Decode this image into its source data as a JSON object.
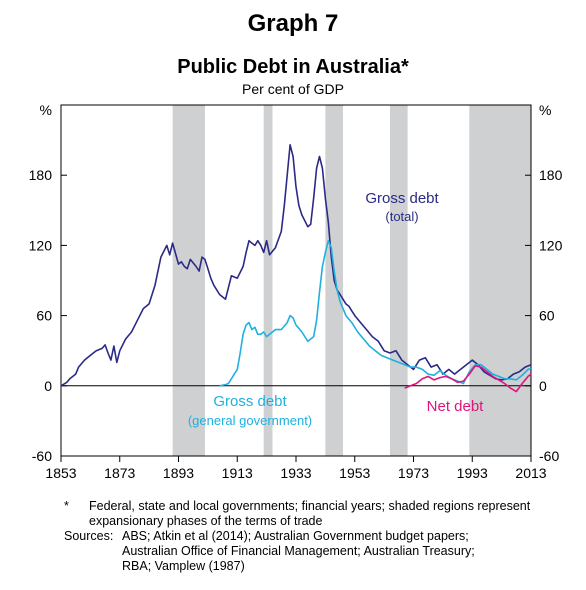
{
  "header": {
    "graph_number": "Graph 7",
    "title": "Public Debt in Australia*",
    "subtitle": "Per cent of GDP"
  },
  "footnote": {
    "marker": "*",
    "text": "Federal, state and local governments; financial years; shaded regions represent expansionary phases of the terms of trade"
  },
  "sources": {
    "label": "Sources:",
    "lines": [
      "ABS; Atkin et al (2014); Australian Government budget papers;",
      "Australian Office of Financial Management; Australian Treasury;",
      "RBA; Vamplew (1987)"
    ]
  },
  "colors": {
    "gross_total": "#2b2b86",
    "gross_general": "#1fb0e0",
    "net": "#e0147f",
    "shade": "#cfd0d2"
  },
  "chart_data": {
    "type": "line",
    "xlim": [
      1853,
      2013
    ],
    "ylim": [
      -60,
      240
    ],
    "x_ticks": [
      "1853",
      "1873",
      "1893",
      "1913",
      "1933",
      "1953",
      "1973",
      "1993",
      "2013"
    ],
    "y_ticks": [
      "-60",
      "0",
      "60",
      "120",
      "180"
    ],
    "y_unit_left": "%",
    "y_unit_right": "%",
    "shaded_periods": [
      [
        1891,
        1902
      ],
      [
        1922,
        1925
      ],
      [
        1943,
        1949
      ],
      [
        1965,
        1971
      ],
      [
        1992,
        2013
      ]
    ],
    "series": [
      {
        "name": "Gross debt (total)",
        "label_lines": [
          "Gross debt",
          "(total)"
        ],
        "color": "#2b2b86",
        "x": [
          1853,
          1855,
          1856,
          1858,
          1859,
          1861,
          1862,
          1864,
          1865,
          1867,
          1868,
          1869,
          1870,
          1871,
          1872,
          1873,
          1875,
          1877,
          1879,
          1881,
          1883,
          1885,
          1887,
          1889,
          1890,
          1891,
          1893,
          1894,
          1895,
          1896,
          1897,
          1899,
          1900,
          1901,
          1902,
          1903,
          1904,
          1905,
          1907,
          1909,
          1911,
          1913,
          1915,
          1916,
          1917,
          1918,
          1919,
          1920,
          1921,
          1922,
          1923,
          1924,
          1926,
          1928,
          1929,
          1930,
          1931,
          1932,
          1933,
          1934,
          1935,
          1937,
          1938,
          1939,
          1940,
          1941,
          1942,
          1943,
          1944,
          1945,
          1946,
          1947,
          1948,
          1949,
          1950,
          1951,
          1952,
          1953,
          1955,
          1957,
          1959,
          1961,
          1963,
          1965,
          1967,
          1969,
          1971,
          1973,
          1975,
          1977,
          1979,
          1981,
          1983,
          1985,
          1987,
          1989,
          1991,
          1993,
          1995,
          1997,
          1999,
          2001,
          2003,
          2005,
          2007,
          2009,
          2011,
          2013
        ],
        "y": [
          0,
          3,
          6,
          10,
          16,
          22,
          24,
          28,
          30,
          32,
          35,
          28,
          22,
          34,
          20,
          30,
          40,
          46,
          56,
          66,
          70,
          86,
          110,
          120,
          112,
          122,
          104,
          106,
          102,
          100,
          108,
          102,
          98,
          110,
          108,
          100,
          92,
          86,
          78,
          74,
          94,
          92,
          102,
          114,
          124,
          122,
          120,
          124,
          120,
          114,
          124,
          112,
          118,
          132,
          154,
          180,
          206,
          196,
          170,
          154,
          146,
          136,
          138,
          160,
          186,
          196,
          186,
          160,
          140,
          110,
          90,
          82,
          78,
          74,
          70,
          68,
          64,
          60,
          54,
          48,
          42,
          38,
          30,
          28,
          30,
          22,
          18,
          14,
          22,
          24,
          16,
          18,
          10,
          14,
          10,
          14,
          18,
          22,
          18,
          12,
          9,
          6,
          5,
          6,
          10,
          12,
          16,
          18
        ]
      },
      {
        "name": "Gross debt (general government)",
        "label_lines": [
          "Gross debt",
          "(general government)"
        ],
        "color": "#1fb0e0",
        "x": [
          1907,
          1909,
          1910,
          1911,
          1912,
          1913,
          1914,
          1915,
          1916,
          1917,
          1918,
          1919,
          1920,
          1921,
          1922,
          1923,
          1924,
          1926,
          1928,
          1930,
          1931,
          1932,
          1933,
          1935,
          1937,
          1939,
          1940,
          1941,
          1942,
          1943,
          1944,
          1945,
          1946,
          1947,
          1948,
          1949,
          1950,
          1952,
          1954,
          1956,
          1958,
          1960,
          1962,
          1964,
          1966,
          1968,
          1970,
          1972,
          1974,
          1976,
          1978,
          1980,
          1982,
          1984,
          1986,
          1988,
          1990,
          1992,
          1994,
          1996,
          1998,
          2000,
          2002,
          2004,
          2006,
          2008,
          2010,
          2012,
          2013
        ],
        "y": [
          0,
          1,
          2,
          6,
          10,
          14,
          28,
          44,
          52,
          54,
          48,
          50,
          44,
          44,
          46,
          42,
          44,
          48,
          48,
          54,
          60,
          58,
          52,
          46,
          38,
          42,
          56,
          80,
          102,
          114,
          124,
          118,
          98,
          82,
          72,
          66,
          60,
          54,
          46,
          40,
          34,
          30,
          26,
          24,
          22,
          20,
          18,
          16,
          16,
          14,
          10,
          9,
          13,
          9,
          6,
          4,
          2,
          12,
          18,
          18,
          14,
          10,
          8,
          6,
          6,
          5,
          9,
          14,
          15
        ]
      },
      {
        "name": "Net debt",
        "label_lines": [
          "Net debt"
        ],
        "color": "#e0147f",
        "x": [
          1970,
          1972,
          1974,
          1976,
          1978,
          1980,
          1982,
          1984,
          1986,
          1988,
          1990,
          1992,
          1994,
          1996,
          1998,
          2000,
          2002,
          2004,
          2006,
          2008,
          2010,
          2012,
          2013
        ],
        "y": [
          -2,
          0,
          2,
          6,
          8,
          5,
          7,
          8,
          6,
          3,
          4,
          10,
          17,
          16,
          12,
          8,
          5,
          2,
          -2,
          -5,
          2,
          8,
          10
        ]
      }
    ]
  }
}
